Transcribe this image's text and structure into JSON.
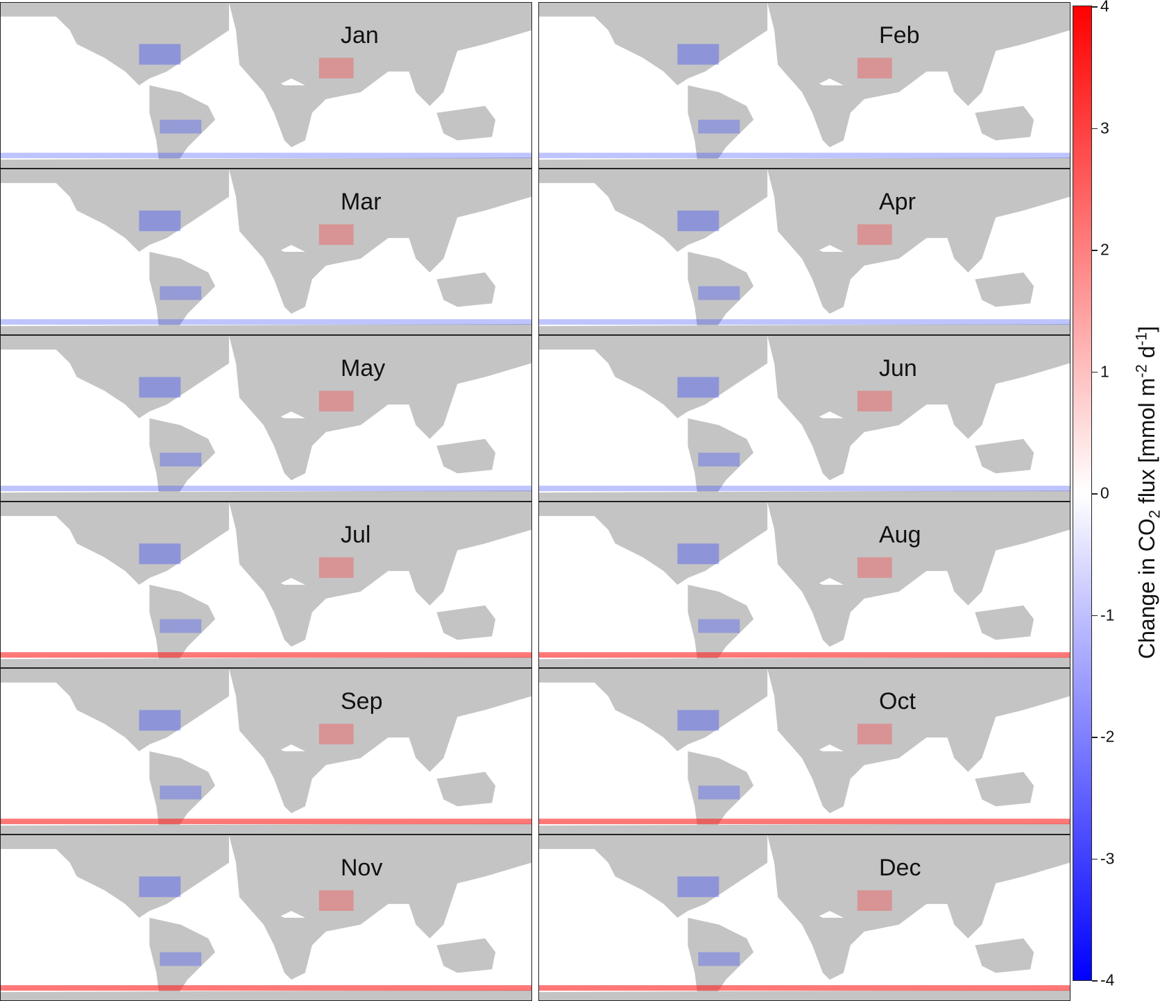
{
  "panels": [
    {
      "month": "Jan"
    },
    {
      "month": "Feb"
    },
    {
      "month": "Mar"
    },
    {
      "month": "Apr"
    },
    {
      "month": "May"
    },
    {
      "month": "Jun"
    },
    {
      "month": "Jul"
    },
    {
      "month": "Aug"
    },
    {
      "month": "Sep"
    },
    {
      "month": "Oct"
    },
    {
      "month": "Nov"
    },
    {
      "month": "Dec"
    }
  ],
  "colorbar": {
    "title_prefix": "Change in CO",
    "title_sub": "2",
    "title_mid": " flux [mmol m",
    "title_sup1": "-2",
    "title_mid2": " d",
    "title_sup2": "-1",
    "title_suffix": "]",
    "ticks": [
      "4",
      "3",
      "2",
      "1",
      "0",
      "-1",
      "-2",
      "-3",
      "-4"
    ],
    "range": [
      -4,
      4
    ],
    "colors": {
      "low": "#0000ff",
      "mid": "#ffffff",
      "high": "#ff0000",
      "land": "#c4c4c4"
    }
  }
}
